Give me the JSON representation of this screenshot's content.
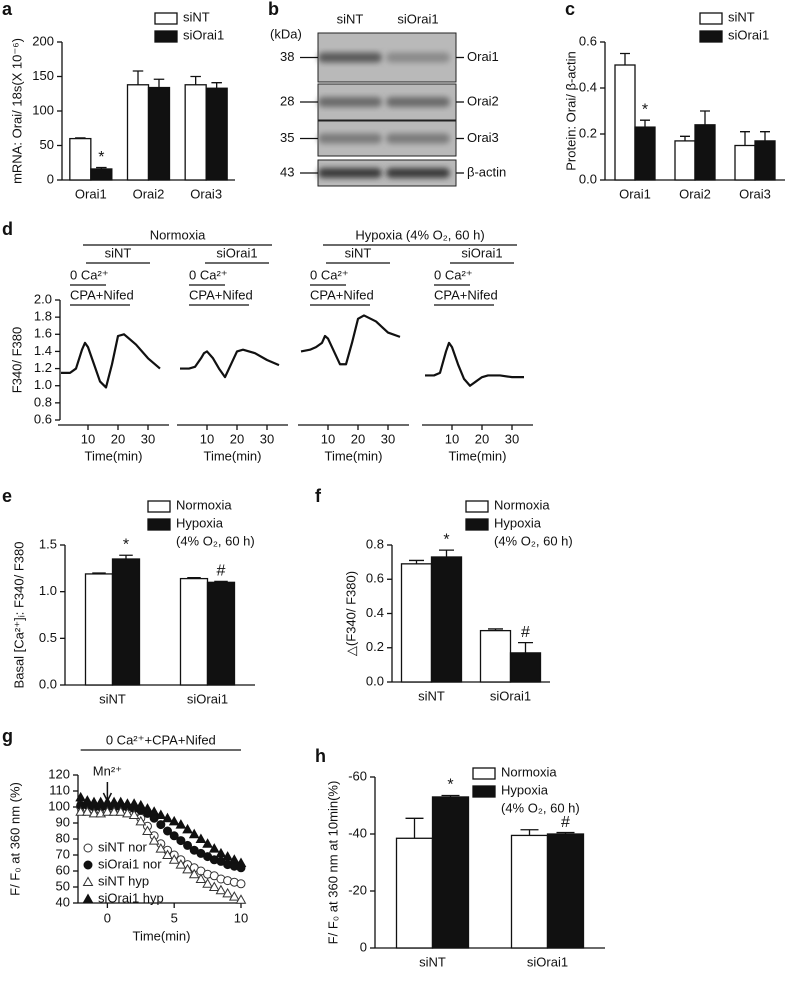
{
  "chart_data": [
    {
      "type": "bar",
      "panel": "a",
      "ylabel": "mRNA: Orai/ 18s(X 10⁻⁶)",
      "categories": [
        "Orai1",
        "Orai2",
        "Orai3"
      ],
      "series": [
        {
          "name": "siNT",
          "color": "#ffffff",
          "values": [
            60,
            138,
            138
          ],
          "errors": [
            1,
            20,
            12
          ]
        },
        {
          "name": "siOrai1",
          "color": "#111111",
          "values": [
            16,
            134,
            133
          ],
          "errors": [
            2,
            12,
            8
          ],
          "annotations": [
            "*",
            null,
            null
          ]
        }
      ],
      "ylim": [
        0,
        200
      ],
      "yticks": [
        0,
        50,
        100,
        150,
        200
      ]
    },
    {
      "type": "bar",
      "panel": "c",
      "ylabel": "Protein: Orai/ β-actin",
      "categories": [
        "Orai1",
        "Orai2",
        "Orai3"
      ],
      "series": [
        {
          "name": "siNT",
          "color": "#ffffff",
          "values": [
            0.5,
            0.17,
            0.15
          ],
          "errors": [
            0.05,
            0.02,
            0.06
          ]
        },
        {
          "name": "siOrai1",
          "color": "#111111",
          "values": [
            0.23,
            0.24,
            0.17
          ],
          "errors": [
            0.03,
            0.06,
            0.04
          ],
          "annotations": [
            "*",
            null,
            null
          ]
        }
      ],
      "ylim": [
        0,
        0.6
      ],
      "yticks": [
        {
          "value": 0,
          "label": "0.0"
        },
        0.2,
        0.4,
        0.6
      ]
    },
    {
      "type": "trace",
      "panel": "d",
      "ylabel": "F340/ F380",
      "xlabel": "Time(min)",
      "ylim": [
        0.6,
        2.0
      ],
      "yticks": [
        0.6,
        0.8,
        {
          "value": 1.0,
          "label": "1.0"
        },
        1.2,
        1.4,
        1.6,
        1.8,
        {
          "value": 2.0,
          "label": "2.0"
        }
      ],
      "xlim": [
        0,
        37
      ],
      "xticks": [
        10,
        20,
        30
      ],
      "periods": [
        {
          "label": "0 Ca²⁺",
          "range": [
            4,
            16
          ]
        },
        {
          "label": "CPA+Nifed",
          "range": [
            4,
            24
          ]
        }
      ],
      "groups": [
        {
          "name": "Normoxia",
          "series": [
            {
              "name": "siNT",
              "x": [
                1,
                4,
                6,
                8,
                9,
                10,
                12,
                14,
                16,
                18,
                20,
                22,
                26,
                30,
                34
              ],
              "values": [
                1.15,
                1.15,
                1.2,
                1.42,
                1.5,
                1.45,
                1.25,
                1.05,
                0.98,
                1.25,
                1.58,
                1.6,
                1.48,
                1.32,
                1.2
              ]
            },
            {
              "name": "siOrai1",
              "x": [
                1,
                4,
                6,
                8,
                9,
                10,
                12,
                14,
                16,
                18,
                20,
                22,
                26,
                30,
                34
              ],
              "values": [
                1.2,
                1.2,
                1.22,
                1.32,
                1.38,
                1.4,
                1.32,
                1.2,
                1.1,
                1.25,
                1.4,
                1.42,
                1.38,
                1.3,
                1.24
              ]
            }
          ]
        },
        {
          "name": "Hypoxia (4% O₂, 60 h)",
          "series": [
            {
              "name": "siNT",
              "x": [
                1,
                4,
                6,
                8,
                9,
                10,
                12,
                14,
                16,
                18,
                20,
                22,
                26,
                30,
                34
              ],
              "values": [
                1.4,
                1.42,
                1.45,
                1.5,
                1.58,
                1.55,
                1.4,
                1.25,
                1.25,
                1.5,
                1.78,
                1.82,
                1.75,
                1.62,
                1.57
              ]
            },
            {
              "name": "siOrai1",
              "x": [
                1,
                4,
                6,
                8,
                9,
                10,
                12,
                14,
                16,
                18,
                20,
                22,
                26,
                30,
                34
              ],
              "values": [
                1.12,
                1.12,
                1.15,
                1.4,
                1.5,
                1.45,
                1.25,
                1.08,
                1.0,
                1.05,
                1.1,
                1.12,
                1.12,
                1.1,
                1.1
              ]
            }
          ]
        }
      ]
    },
    {
      "type": "bar",
      "panel": "e",
      "ylabel": "Basal [Ca²⁺]ᵢ: F340/ F380",
      "categories": [
        "siNT",
        "siOrai1"
      ],
      "series": [
        {
          "name": "Normoxia",
          "color": "#ffffff",
          "values": [
            1.19,
            1.14
          ],
          "errors": [
            0.01,
            0.01
          ]
        },
        {
          "name": "Hypoxia",
          "color": "#111111",
          "values": [
            1.35,
            1.1
          ],
          "errors": [
            0.04,
            0.01
          ],
          "annotations": [
            "*",
            "#"
          ]
        }
      ],
      "legend_note": "(4% O₂, 60 h)",
      "ylim": [
        0,
        1.5
      ],
      "yticks": [
        {
          "value": 0,
          "label": "0.0"
        },
        0.5,
        {
          "value": 1.0,
          "label": "1.0"
        },
        1.5
      ]
    },
    {
      "type": "bar",
      "panel": "f",
      "ylabel": "△(F340/ F380)",
      "categories": [
        "siNT",
        "siOrai1"
      ],
      "series": [
        {
          "name": "Normoxia",
          "color": "#ffffff",
          "values": [
            0.69,
            0.3
          ],
          "errors": [
            0.02,
            0.01
          ]
        },
        {
          "name": "Hypoxia",
          "color": "#111111",
          "values": [
            0.73,
            0.17
          ],
          "errors": [
            0.04,
            0.06
          ],
          "annotations": [
            "*",
            "#"
          ]
        }
      ],
      "legend_note": "(4% O₂, 60 h)",
      "ylim": [
        0,
        0.8
      ],
      "yticks": [
        {
          "value": 0,
          "label": "0.0"
        },
        0.2,
        0.4,
        0.6,
        0.8
      ]
    },
    {
      "type": "scatter",
      "panel": "g",
      "ylabel": "F/ F₀ at 360 nm (%)",
      "xlabel": "Time(min)",
      "treatment": {
        "label": "0 Ca²⁺+CPA+Nifed",
        "range": [
          -2,
          10
        ]
      },
      "arrow": {
        "label": "Mn²⁺",
        "x": 0
      },
      "x": [
        -2,
        -1.5,
        -1,
        -0.5,
        0,
        0.5,
        1,
        1.5,
        2,
        2.5,
        3,
        3.5,
        4,
        4.5,
        5,
        5.5,
        6,
        6.5,
        7,
        7.5,
        8,
        8.5,
        9,
        9.5,
        10
      ],
      "series": [
        {
          "name": "siNT nor",
          "marker": "circle-open",
          "color": "#333333",
          "values": [
            100,
            99,
            98,
            98,
            98,
            98,
            98,
            97,
            96,
            93,
            88,
            82,
            77,
            73,
            70,
            67,
            64,
            62,
            60,
            58,
            57,
            55,
            54,
            53,
            52
          ]
        },
        {
          "name": "siOrai1 nor",
          "marker": "circle",
          "color": "#111111",
          "values": [
            101,
            101,
            100,
            100,
            100,
            100,
            100,
            100,
            99,
            98,
            96,
            93,
            89,
            85,
            82,
            79,
            76,
            73,
            71,
            69,
            67,
            66,
            64,
            63,
            62
          ]
        },
        {
          "name": "siNT hyp",
          "marker": "triangle-open",
          "color": "#333333",
          "values": [
            97,
            97,
            96,
            96,
            97,
            97,
            97,
            96,
            95,
            91,
            85,
            79,
            74,
            70,
            67,
            64,
            61,
            58,
            55,
            52,
            50,
            48,
            46,
            44,
            42
          ]
        },
        {
          "name": "siOrai1 hyp",
          "marker": "triangle",
          "color": "#111111",
          "values": [
            106,
            104,
            103,
            103,
            103,
            103,
            103,
            102,
            102,
            101,
            99,
            97,
            95,
            93,
            91,
            89,
            86,
            83,
            80,
            77,
            74,
            71,
            69,
            67,
            65
          ]
        }
      ],
      "xlim": [
        -2.2,
        10.3
      ],
      "xticks": [
        0,
        5,
        10
      ],
      "ylim": [
        40,
        120
      ],
      "yticks": [
        40,
        50,
        60,
        70,
        80,
        90,
        100,
        110,
        120
      ]
    },
    {
      "type": "bar",
      "panel": "h",
      "ylabel": "F/ F₀ at 360 nm at 10min(%)",
      "categories": [
        "siNT",
        "siOrai1"
      ],
      "series": [
        {
          "name": "Normoxia",
          "color": "#ffffff",
          "values": [
            -38.5,
            -39.5
          ],
          "errors": [
            7,
            2
          ]
        },
        {
          "name": "Hypoxia",
          "color": "#111111",
          "values": [
            -53,
            -40
          ],
          "errors": [
            0.5,
            0.5
          ],
          "annotations": [
            "*",
            "#"
          ]
        }
      ],
      "legend_note": "(4% O₂, 60 h)",
      "ylim": [
        0,
        -60
      ],
      "yticks": [
        0,
        -20,
        -40,
        -60
      ]
    }
  ],
  "blot": {
    "panel": "b",
    "unit": "(kDa)",
    "lanes": [
      "siNT",
      "siOrai1"
    ],
    "rows": [
      {
        "kda": 38,
        "name": "Orai1"
      },
      {
        "kda": 28,
        "name": "Orai2"
      },
      {
        "kda": 35,
        "name": "Orai3"
      },
      {
        "kda": 43,
        "name": "β-actin"
      }
    ]
  }
}
